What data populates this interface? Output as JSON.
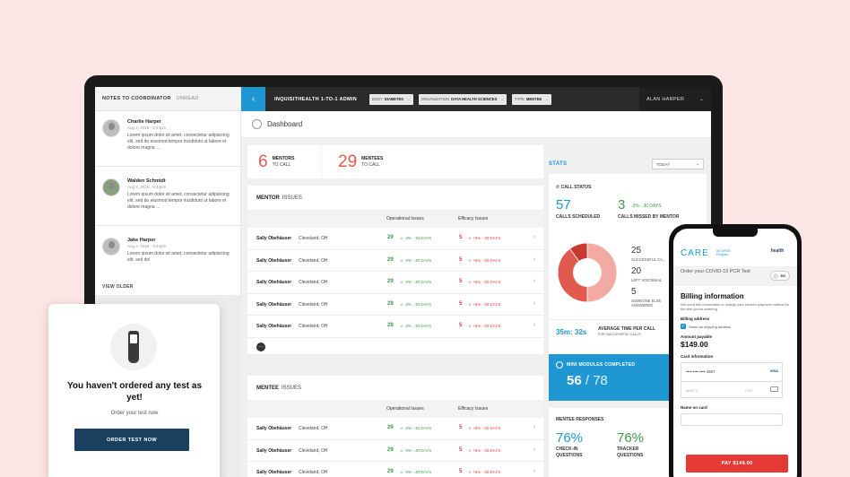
{
  "notes": {
    "title": "NOTES TO COORDINATOR",
    "filter": "UNREAD",
    "items": [
      {
        "name": "Charlie Harper",
        "date": "Aug 3, 2016 - 9:44pm",
        "text": "Lorem ipsum dolor sit amet, consectetur adipisicing elit, sed do eiusmod tempor incididunt ut labore et dolore magna ..."
      },
      {
        "name": "Walden Schmidt",
        "date": "Aug 3, 2016 - 9:44pm",
        "text": "Lorem ipsum dolor sit amet, consectetur adipisicing elit, sed do eiusmod tempor incididunt ut labore et dolore magna ..."
      },
      {
        "name": "Jake Harper",
        "date": "Aug 3, 2016 - 9:44pm",
        "text": "Lorem ipsum dolor sit amet, consectetur adipisicing elit, sed do!"
      }
    ],
    "view_older": "VIEW OLDER"
  },
  "header": {
    "app_title": "INQUISITHEALTH 1-TO-1 ADMIN",
    "filters": [
      {
        "label": "BODY",
        "value": "DIABETES"
      },
      {
        "label": "ORGANIZATION",
        "value": "DATA HEALTH SCIENCES"
      },
      {
        "label": "TYPE",
        "value": "MENTEE"
      }
    ],
    "user": "ALAN HARPER"
  },
  "dashboard": {
    "title": "Dashboard"
  },
  "counts": [
    {
      "num": "6",
      "strong": "MENTORS",
      "sub": "TO CALL"
    },
    {
      "num": "29",
      "strong": "MENTEES",
      "sub": "TO CALL"
    }
  ],
  "mentor_issues": {
    "title_bold": "MENTOR",
    "title_rest": "ISSUES",
    "col_operational": "Operational Issues",
    "col_efficacy": "Efficacy Issues",
    "rows": [
      {
        "name": "Sally Obehäuser",
        "loc": "Cleveland, OH",
        "op": "29",
        "op_text": "-3% - 30 DAYS",
        "ef": "5",
        "ef_text": "+5% - 30 DAYS"
      },
      {
        "name": "Sally Obehäuser",
        "loc": "Cleveland, OH",
        "op": "29",
        "op_text": "-3% - 30 DAYS",
        "ef": "5",
        "ef_text": "+5% - 30 DAYS"
      },
      {
        "name": "Sally Obehäuser",
        "loc": "Cleveland, OH",
        "op": "29",
        "op_text": "-3% - 30 DAYS",
        "ef": "5",
        "ef_text": "+5% - 30 DAYS"
      },
      {
        "name": "Sally Obehäuser",
        "loc": "Cleveland, OH",
        "op": "29",
        "op_text": "-3% - 30 DAYS",
        "ef": "5",
        "ef_text": "+5% - 30 DAYS"
      },
      {
        "name": "Sally Obehäuser",
        "loc": "Cleveland, OH",
        "op": "29",
        "op_text": "-3% - 30 DAYS",
        "ef": "5",
        "ef_text": "+5% - 30 DAYS"
      }
    ]
  },
  "mentee_issues": {
    "title_bold": "MENTEE",
    "title_rest": "ISSUES",
    "col_operational": "Operational Issues",
    "col_efficacy": "Efficacy Issues",
    "rows": [
      {
        "name": "Sally Obehäuser",
        "loc": "Cleveland, OH",
        "op": "29",
        "op_text": "-3% - 30 DAYS",
        "ef": "5",
        "ef_text": "+5% - 30 DAYS"
      },
      {
        "name": "Sally Obehäuser",
        "loc": "Cleveland, OH",
        "op": "29",
        "op_text": "-3% - 30 DAYS",
        "ef": "5",
        "ef_text": "+5% - 30 DAYS"
      },
      {
        "name": "Sally Obehäuser",
        "loc": "Cleveland, OH",
        "op": "29",
        "op_text": "-3% - 30 DAYS",
        "ef": "5",
        "ef_text": "+5% - 30 DAYS"
      }
    ]
  },
  "stats": {
    "label": "STATS",
    "period": "TODAY",
    "call_status": {
      "title": "CALL STATUS",
      "scheduled_num": "57",
      "scheduled_lbl": "CALLS SCHEDULED",
      "missed_num": "3",
      "missed_lbl": "CALLS MISSED BY MENTOR",
      "missed_delta": "-3% - 30 DAYS",
      "successful_num": "25",
      "successful_lbl": "SUCCESSFUL CA...",
      "voicemail_num": "20",
      "voicemail_lbl": "LEFT VOICEMAIL",
      "other_num": "5",
      "other_lbl": "SOMEONE ELSE ANSWERED",
      "avg_time": "35m: 32s",
      "avg_lbl": "AVERAGE TIME PER CALL",
      "avg_sub": "FOR SUCCESSFUL CALLS"
    },
    "mini_modules": {
      "title": "MINI MODULES COMPLETED",
      "done": "56",
      "total": "/ 78"
    },
    "mentee_responses": {
      "title": "MENTEE RESPONSES",
      "checkin_num": "76%",
      "checkin_lbl": "CHECK-IN QUESTIONS",
      "tracker_num": "76%",
      "tracker_lbl": "TRACKER QUESTIONS"
    }
  },
  "order_card": {
    "title": "You haven't ordered any test as yet!",
    "subtitle": "Order your test now",
    "button": "ORDER TEST NOW"
  },
  "phone": {
    "brand": "CARE",
    "brand_sub": "An OPOD Program",
    "logo_text": "health",
    "order_label": "Order your COVID-19 PCR Test",
    "lang": "EN",
    "billing_title": "Billing information",
    "billing_desc": "We need this information to charge your chosen payment method for the test you're ordering.",
    "billing_address_lbl": "Billing address",
    "same_as_shipping": "Same as shipping address",
    "amount_lbl": "Amount payable",
    "amount": "$149.00",
    "card_info_lbl": "Card information",
    "card_number": "•••• •••• •••• 4567",
    "card_brand": "VISA",
    "mmyy": "MM/YY",
    "cvv": "CVV",
    "name_lbl": "Name on card",
    "pay_button": "PAY $149.00"
  },
  "chart_data": {
    "type": "pie",
    "categories": [
      "SUCCESSFUL CA...",
      "LEFT VOICEMAIL",
      "SOMEONE ELSE ANSWERED"
    ],
    "values": [
      25,
      20,
      5
    ]
  },
  "colors": {
    "accent": "#1e97d2",
    "red": "#e05a4e",
    "green": "#3a9b45",
    "navy": "#1b3f5e",
    "pay_red": "#e53935"
  }
}
